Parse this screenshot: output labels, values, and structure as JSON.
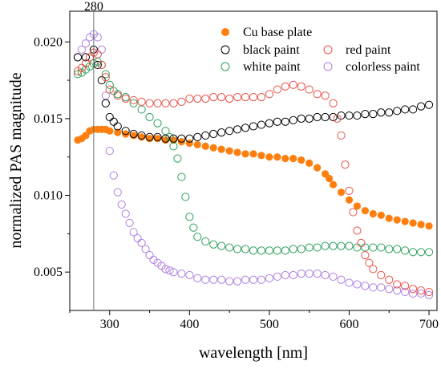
{
  "chart_data": {
    "type": "scatter",
    "title": "",
    "xlabel": "wavelength [nm]",
    "ylabel": "normalized PAS magnitude",
    "xlim": [
      250,
      710
    ],
    "ylim": [
      0.0025,
      0.022
    ],
    "x_ticks": [
      300,
      400,
      500,
      600,
      700
    ],
    "x_tick_labels": [
      "300",
      "400",
      "500",
      "600",
      "700"
    ],
    "y_ticks": [
      0.005,
      0.01,
      0.015,
      0.02
    ],
    "y_tick_labels": [
      "0.005",
      "0.010",
      "0.015",
      "0.020"
    ],
    "grid": false,
    "legend": "top-right, two columns",
    "annotations": [
      {
        "type": "vertical-line",
        "x": 280,
        "label": "280"
      }
    ],
    "series": [
      {
        "name": "Cu base plate",
        "marker": "filled-circle",
        "color": "#ff7f0e",
        "points": [
          [
            260,
            0.0136
          ],
          [
            265,
            0.0137
          ],
          [
            270,
            0.0139
          ],
          [
            275,
            0.0142
          ],
          [
            280,
            0.0143
          ],
          [
            285,
            0.0143
          ],
          [
            290,
            0.0143
          ],
          [
            295,
            0.0143
          ],
          [
            300,
            0.0142
          ],
          [
            310,
            0.0141
          ],
          [
            320,
            0.014
          ],
          [
            330,
            0.0139
          ],
          [
            340,
            0.0138
          ],
          [
            350,
            0.0137
          ],
          [
            360,
            0.0137
          ],
          [
            370,
            0.0136
          ],
          [
            380,
            0.0136
          ],
          [
            390,
            0.0135
          ],
          [
            400,
            0.0134
          ],
          [
            410,
            0.0133
          ],
          [
            420,
            0.0132
          ],
          [
            430,
            0.0131
          ],
          [
            440,
            0.013
          ],
          [
            450,
            0.0129
          ],
          [
            460,
            0.0128
          ],
          [
            470,
            0.0127
          ],
          [
            480,
            0.0127
          ],
          [
            490,
            0.0126
          ],
          [
            500,
            0.0125
          ],
          [
            510,
            0.0125
          ],
          [
            520,
            0.0124
          ],
          [
            530,
            0.0124
          ],
          [
            540,
            0.0123
          ],
          [
            550,
            0.0121
          ],
          [
            560,
            0.0118
          ],
          [
            570,
            0.0114
          ],
          [
            575,
            0.0111
          ],
          [
            580,
            0.0107
          ],
          [
            590,
            0.0102
          ],
          [
            600,
            0.0097
          ],
          [
            610,
            0.0093
          ],
          [
            620,
            0.009
          ],
          [
            630,
            0.0088
          ],
          [
            640,
            0.0087
          ],
          [
            650,
            0.0085
          ],
          [
            660,
            0.0084
          ],
          [
            670,
            0.0083
          ],
          [
            680,
            0.0082
          ],
          [
            690,
            0.0081
          ],
          [
            700,
            0.008
          ]
        ]
      },
      {
        "name": "black paint",
        "marker": "open-circle",
        "color": "#000000",
        "points": [
          [
            260,
            0.019
          ],
          [
            270,
            0.019
          ],
          [
            280,
            0.0195
          ],
          [
            285,
            0.0185
          ],
          [
            290,
            0.0175
          ],
          [
            295,
            0.016
          ],
          [
            300,
            0.0151
          ],
          [
            305,
            0.0148
          ],
          [
            310,
            0.0145
          ],
          [
            320,
            0.0142
          ],
          [
            330,
            0.014
          ],
          [
            340,
            0.0139
          ],
          [
            350,
            0.0138
          ],
          [
            360,
            0.0138
          ],
          [
            370,
            0.0137
          ],
          [
            380,
            0.0137
          ],
          [
            390,
            0.0137
          ],
          [
            400,
            0.0137
          ],
          [
            410,
            0.0138
          ],
          [
            420,
            0.0139
          ],
          [
            430,
            0.014
          ],
          [
            440,
            0.0141
          ],
          [
            450,
            0.0142
          ],
          [
            460,
            0.0143
          ],
          [
            470,
            0.0144
          ],
          [
            480,
            0.0145
          ],
          [
            490,
            0.0146
          ],
          [
            500,
            0.0147
          ],
          [
            510,
            0.0148
          ],
          [
            520,
            0.0148
          ],
          [
            530,
            0.0149
          ],
          [
            540,
            0.015
          ],
          [
            550,
            0.015
          ],
          [
            560,
            0.0151
          ],
          [
            570,
            0.0151
          ],
          [
            580,
            0.0151
          ],
          [
            590,
            0.0152
          ],
          [
            600,
            0.0152
          ],
          [
            610,
            0.0152
          ],
          [
            620,
            0.0153
          ],
          [
            630,
            0.0153
          ],
          [
            640,
            0.0154
          ],
          [
            650,
            0.0154
          ],
          [
            660,
            0.0155
          ],
          [
            670,
            0.0156
          ],
          [
            680,
            0.0156
          ],
          [
            690,
            0.0158
          ],
          [
            700,
            0.0159
          ]
        ]
      },
      {
        "name": "red paint",
        "marker": "open-circle",
        "color": "#e8524a",
        "points": [
          [
            260,
            0.0181
          ],
          [
            265,
            0.0183
          ],
          [
            270,
            0.0186
          ],
          [
            275,
            0.019
          ],
          [
            280,
            0.0193
          ],
          [
            285,
            0.0192
          ],
          [
            290,
            0.0185
          ],
          [
            295,
            0.0177
          ],
          [
            300,
            0.0169
          ],
          [
            310,
            0.0165
          ],
          [
            320,
            0.0163
          ],
          [
            330,
            0.0162
          ],
          [
            340,
            0.0161
          ],
          [
            350,
            0.016
          ],
          [
            360,
            0.016
          ],
          [
            370,
            0.016
          ],
          [
            380,
            0.016
          ],
          [
            390,
            0.0161
          ],
          [
            400,
            0.0163
          ],
          [
            410,
            0.0163
          ],
          [
            420,
            0.0163
          ],
          [
            430,
            0.0164
          ],
          [
            440,
            0.0164
          ],
          [
            450,
            0.0163
          ],
          [
            460,
            0.0164
          ],
          [
            470,
            0.0164
          ],
          [
            480,
            0.0164
          ],
          [
            490,
            0.0164
          ],
          [
            500,
            0.0166
          ],
          [
            510,
            0.0169
          ],
          [
            520,
            0.0171
          ],
          [
            530,
            0.0172
          ],
          [
            540,
            0.0171
          ],
          [
            550,
            0.0169
          ],
          [
            560,
            0.0166
          ],
          [
            570,
            0.0165
          ],
          [
            580,
            0.016
          ],
          [
            585,
            0.015
          ],
          [
            590,
            0.0139
          ],
          [
            595,
            0.012
          ],
          [
            600,
            0.0103
          ],
          [
            605,
            0.0089
          ],
          [
            610,
            0.0077
          ],
          [
            615,
            0.0069
          ],
          [
            620,
            0.0061
          ],
          [
            625,
            0.0056
          ],
          [
            630,
            0.0052
          ],
          [
            640,
            0.0048
          ],
          [
            650,
            0.0045
          ],
          [
            660,
            0.0042
          ],
          [
            670,
            0.0041
          ],
          [
            680,
            0.0039
          ],
          [
            690,
            0.0038
          ],
          [
            700,
            0.0037
          ]
        ]
      },
      {
        "name": "white paint",
        "marker": "open-circle",
        "color": "#2ca05a",
        "points": [
          [
            260,
            0.0179
          ],
          [
            265,
            0.018
          ],
          [
            270,
            0.0182
          ],
          [
            275,
            0.0184
          ],
          [
            280,
            0.0186
          ],
          [
            285,
            0.0187
          ],
          [
            290,
            0.0185
          ],
          [
            295,
            0.0179
          ],
          [
            300,
            0.0172
          ],
          [
            305,
            0.0168
          ],
          [
            310,
            0.0166
          ],
          [
            320,
            0.0164
          ],
          [
            330,
            0.016
          ],
          [
            340,
            0.0156
          ],
          [
            350,
            0.0151
          ],
          [
            360,
            0.0147
          ],
          [
            370,
            0.0142
          ],
          [
            375,
            0.0138
          ],
          [
            380,
            0.0132
          ],
          [
            385,
            0.0124
          ],
          [
            390,
            0.0112
          ],
          [
            395,
            0.0099
          ],
          [
            400,
            0.0086
          ],
          [
            405,
            0.0079
          ],
          [
            410,
            0.0073
          ],
          [
            420,
            0.007
          ],
          [
            430,
            0.0068
          ],
          [
            440,
            0.0067
          ],
          [
            450,
            0.0066
          ],
          [
            460,
            0.0065
          ],
          [
            470,
            0.0065
          ],
          [
            480,
            0.0064
          ],
          [
            490,
            0.0064
          ],
          [
            500,
            0.0064
          ],
          [
            510,
            0.0064
          ],
          [
            520,
            0.0064
          ],
          [
            530,
            0.0065
          ],
          [
            540,
            0.0065
          ],
          [
            550,
            0.0066
          ],
          [
            560,
            0.0066
          ],
          [
            570,
            0.0067
          ],
          [
            580,
            0.0067
          ],
          [
            590,
            0.0067
          ],
          [
            600,
            0.0067
          ],
          [
            610,
            0.0066
          ],
          [
            620,
            0.0066
          ],
          [
            630,
            0.0066
          ],
          [
            640,
            0.0066
          ],
          [
            650,
            0.0065
          ],
          [
            660,
            0.0065
          ],
          [
            670,
            0.0064
          ],
          [
            680,
            0.0063
          ],
          [
            690,
            0.0063
          ],
          [
            700,
            0.0063
          ]
        ]
      },
      {
        "name": "colorless paint",
        "marker": "open-circle",
        "color": "#b07fe0",
        "points": [
          [
            260,
            0.019
          ],
          [
            265,
            0.0195
          ],
          [
            270,
            0.0199
          ],
          [
            275,
            0.0203
          ],
          [
            280,
            0.0205
          ],
          [
            285,
            0.0203
          ],
          [
            290,
            0.0195
          ],
          [
            295,
            0.0165
          ],
          [
            300,
            0.0129
          ],
          [
            305,
            0.0113
          ],
          [
            310,
            0.0102
          ],
          [
            315,
            0.0094
          ],
          [
            320,
            0.0088
          ],
          [
            325,
            0.0082
          ],
          [
            330,
            0.0076
          ],
          [
            335,
            0.0072
          ],
          [
            340,
            0.0069
          ],
          [
            345,
            0.0065
          ],
          [
            350,
            0.0061
          ],
          [
            355,
            0.0058
          ],
          [
            360,
            0.0056
          ],
          [
            365,
            0.0054
          ],
          [
            370,
            0.0052
          ],
          [
            375,
            0.0051
          ],
          [
            380,
            0.005
          ],
          [
            390,
            0.0049
          ],
          [
            400,
            0.0048
          ],
          [
            410,
            0.0046
          ],
          [
            420,
            0.0045
          ],
          [
            430,
            0.0045
          ],
          [
            440,
            0.0045
          ],
          [
            450,
            0.0044
          ],
          [
            460,
            0.0044
          ],
          [
            470,
            0.0045
          ],
          [
            480,
            0.0045
          ],
          [
            490,
            0.0045
          ],
          [
            500,
            0.0046
          ],
          [
            510,
            0.0047
          ],
          [
            520,
            0.0048
          ],
          [
            530,
            0.0048
          ],
          [
            540,
            0.0049
          ],
          [
            550,
            0.0049
          ],
          [
            560,
            0.0049
          ],
          [
            570,
            0.0048
          ],
          [
            580,
            0.0047
          ],
          [
            590,
            0.0045
          ],
          [
            600,
            0.0043
          ],
          [
            610,
            0.0042
          ],
          [
            620,
            0.0041
          ],
          [
            630,
            0.004
          ],
          [
            640,
            0.004
          ],
          [
            650,
            0.0039
          ],
          [
            660,
            0.0038
          ],
          [
            670,
            0.0037
          ],
          [
            680,
            0.0036
          ],
          [
            690,
            0.0036
          ],
          [
            700,
            0.0035
          ]
        ]
      }
    ]
  }
}
